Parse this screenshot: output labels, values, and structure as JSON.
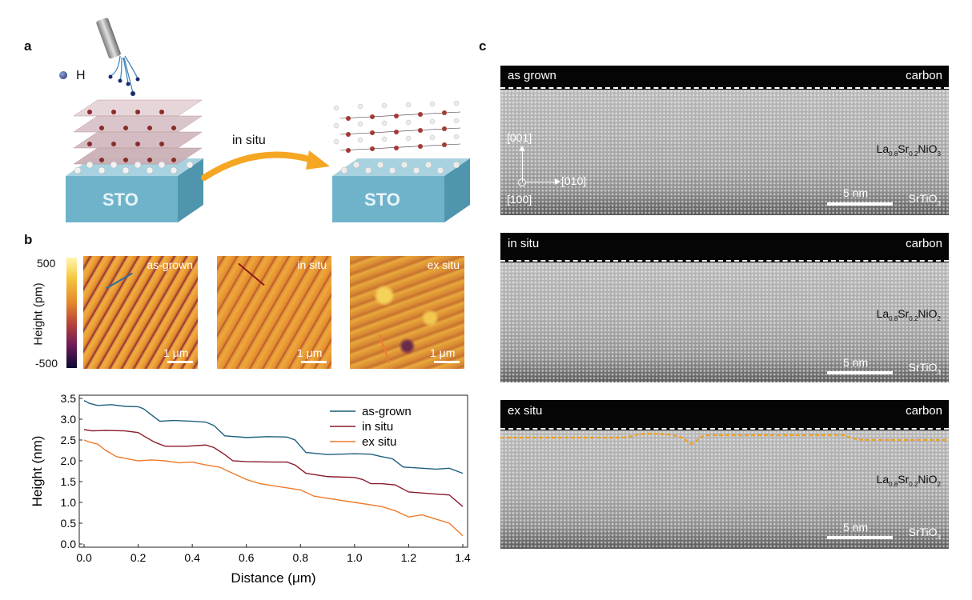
{
  "panel_labels": {
    "a": "a",
    "b": "b",
    "c": "c"
  },
  "panel_a": {
    "h_label": "H",
    "substrate_label": "STO",
    "arrow_label": "in situ"
  },
  "panel_b_afm": {
    "colorbar": {
      "label": "Height (pm)",
      "max": "500",
      "min": "-500"
    },
    "images": [
      {
        "label": "as-grown",
        "scale": "1 μm",
        "line_color": "#2a6fa0"
      },
      {
        "label": "in situ",
        "scale": "1 μm",
        "line_color": "#8b1a1a"
      },
      {
        "label": "ex situ",
        "scale": "1 μm",
        "line_color": "#f07a35"
      }
    ]
  },
  "chart_data": {
    "type": "line",
    "xlabel": "Distance (μm)",
    "ylabel": "Height (nm)",
    "xlim": [
      0,
      1.4
    ],
    "ylim": [
      0,
      3.5
    ],
    "xticks": [
      0.0,
      0.2,
      0.4,
      0.6,
      0.8,
      1.0,
      1.2,
      1.4
    ],
    "yticks": [
      0.0,
      0.5,
      1.0,
      1.5,
      2.0,
      2.5,
      3.0,
      3.5
    ],
    "legend_position": "top-right",
    "series": [
      {
        "name": "as-grown",
        "color": "#1f5f7f",
        "x": [
          0,
          0.02,
          0.05,
          0.1,
          0.15,
          0.2,
          0.22,
          0.25,
          0.28,
          0.33,
          0.4,
          0.45,
          0.48,
          0.52,
          0.6,
          0.68,
          0.75,
          0.78,
          0.82,
          0.9,
          1.0,
          1.06,
          1.1,
          1.14,
          1.18,
          1.25,
          1.3,
          1.35,
          1.4
        ],
        "y": [
          3.45,
          3.38,
          3.33,
          3.35,
          3.31,
          3.3,
          3.25,
          3.1,
          2.95,
          2.97,
          2.95,
          2.93,
          2.85,
          2.6,
          2.56,
          2.58,
          2.57,
          2.5,
          2.2,
          2.15,
          2.17,
          2.16,
          2.1,
          2.05,
          1.85,
          1.82,
          1.8,
          1.82,
          1.7
        ]
      },
      {
        "name": "in situ",
        "color": "#8b1a2a",
        "x": [
          0,
          0.03,
          0.08,
          0.15,
          0.2,
          0.22,
          0.26,
          0.3,
          0.38,
          0.45,
          0.48,
          0.52,
          0.55,
          0.6,
          0.7,
          0.75,
          0.78,
          0.82,
          0.9,
          1.0,
          1.03,
          1.06,
          1.1,
          1.15,
          1.2,
          1.3,
          1.35,
          1.4
        ],
        "y": [
          2.75,
          2.72,
          2.73,
          2.72,
          2.68,
          2.6,
          2.45,
          2.35,
          2.35,
          2.38,
          2.32,
          2.15,
          2.0,
          1.98,
          1.97,
          1.97,
          1.9,
          1.7,
          1.62,
          1.6,
          1.55,
          1.45,
          1.45,
          1.42,
          1.25,
          1.2,
          1.18,
          0.9
        ]
      },
      {
        "name": "ex situ",
        "color": "#f07a2a",
        "x": [
          0,
          0.02,
          0.05,
          0.08,
          0.12,
          0.16,
          0.2,
          0.25,
          0.3,
          0.35,
          0.4,
          0.45,
          0.5,
          0.55,
          0.6,
          0.65,
          0.7,
          0.75,
          0.8,
          0.85,
          0.9,
          0.95,
          1.0,
          1.05,
          1.1,
          1.15,
          1.2,
          1.25,
          1.3,
          1.35,
          1.4
        ],
        "y": [
          2.5,
          2.45,
          2.4,
          2.25,
          2.1,
          2.05,
          2.0,
          2.02,
          2.0,
          1.95,
          1.97,
          1.9,
          1.85,
          1.7,
          1.55,
          1.45,
          1.4,
          1.35,
          1.3,
          1.15,
          1.1,
          1.05,
          1.0,
          0.95,
          0.9,
          0.8,
          0.65,
          0.7,
          0.6,
          0.5,
          0.2
        ]
      }
    ]
  },
  "panel_c": {
    "panels": [
      {
        "title": "as grown",
        "carbon": "carbon",
        "material": "La0.8Sr0.2NiO3",
        "substrate": "SrTiO3",
        "scale": "5 nm"
      },
      {
        "title": "in situ",
        "carbon": "carbon",
        "material": "La0.8Sr0.2NiO2",
        "substrate": "SrTiO3",
        "scale": "5 nm"
      },
      {
        "title": "ex situ",
        "carbon": "carbon",
        "material": "La0.8Sr0.2NiO2",
        "substrate": "SrTiO3",
        "scale": "5 nm"
      }
    ],
    "axes": {
      "up": "[001]",
      "right": "[010]",
      "origin": "[100]"
    }
  }
}
